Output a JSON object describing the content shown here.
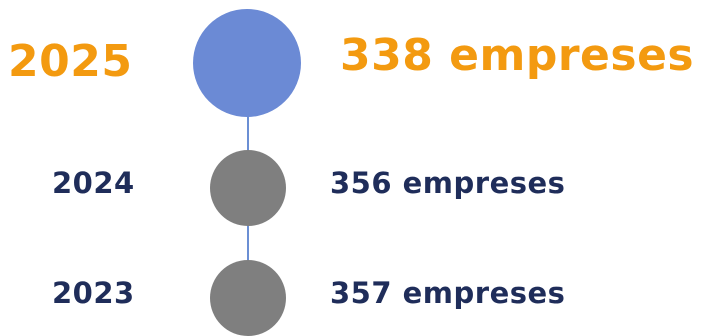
{
  "timeline": {
    "colors": {
      "current_text": "#f39a10",
      "current_dot": "#6b8ad5",
      "past_text": "#1f2d5a",
      "past_dot": "#7f7f7f",
      "connector": "#6b8fd4"
    },
    "entries": [
      {
        "year": "2025",
        "count": "338 empreses"
      },
      {
        "year": "2024",
        "count": "356 empreses"
      },
      {
        "year": "2023",
        "count": "357 empreses"
      }
    ]
  }
}
